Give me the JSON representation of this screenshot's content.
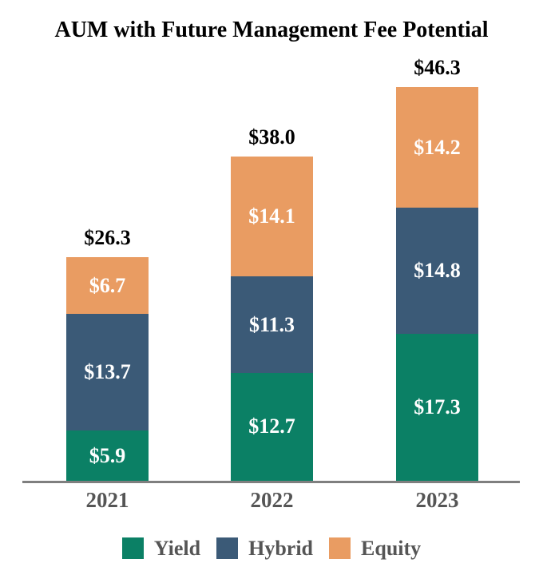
{
  "chart_data": {
    "type": "bar",
    "stacked": true,
    "title": "AUM with Future Management Fee Potential",
    "categories": [
      "2021",
      "2022",
      "2023"
    ],
    "series": [
      {
        "name": "Yield",
        "color": "#0B8065",
        "values": [
          5.9,
          12.7,
          17.3
        ],
        "labels": [
          "$5.9",
          "$12.7",
          "$17.3"
        ]
      },
      {
        "name": "Hybrid",
        "color": "#3B5A77",
        "values": [
          13.7,
          11.3,
          14.8
        ],
        "labels": [
          "$13.7",
          "$11.3",
          "$14.8"
        ]
      },
      {
        "name": "Equity",
        "color": "#E99C62",
        "values": [
          6.7,
          14.1,
          14.2
        ],
        "labels": [
          "$6.7",
          "$14.1",
          "$14.2"
        ]
      }
    ],
    "totals": [
      26.3,
      38.0,
      46.3
    ],
    "totals_display": [
      "$26.3",
      "$38.0",
      "$46.3"
    ],
    "legend_position": "bottom",
    "legend_entries": [
      "Yield",
      "Hybrid",
      "Equity"
    ],
    "grid": false,
    "colors": {
      "axis_line": "#7F7F7F",
      "axis_text": "#555555",
      "title_text": "#000000",
      "segment_label_text": "#FFFFFF",
      "background": "#FFFFFF"
    }
  }
}
